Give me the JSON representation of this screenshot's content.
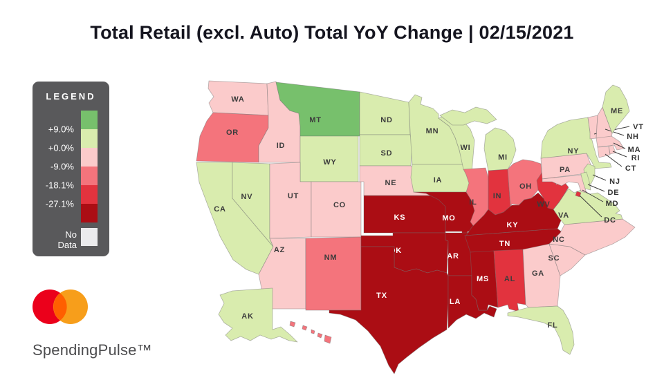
{
  "title": "Total Retail (excl. Auto) Total YoY Change | 02/15/2021",
  "legend": {
    "title": "LEGEND",
    "boundary_labels": [
      "+9.0%",
      "+0.0%",
      "-9.0%",
      "-18.1%",
      "-27.1%"
    ],
    "swatch_colors": [
      "#77c06c",
      "#d9ecae",
      "#fbcbcb",
      "#f4747c",
      "#e2333e",
      "#ab0d14"
    ],
    "no_data_label": "No Data",
    "no_data_color": "#ebebed",
    "background": "#59595b"
  },
  "chart_data": {
    "type": "choropleth",
    "title": "Total Retail (excl. Auto) Total YoY Change",
    "date": "02/15/2021",
    "unit": "YoY % change buckets",
    "legend_position": "left",
    "buckets": [
      {
        "range": "above +9.0%",
        "color": "#77c06c"
      },
      {
        "range": "+0.0% to +9.0%",
        "color": "#d9ecae"
      },
      {
        "range": "-9.0% to +0.0%",
        "color": "#fbcbcb"
      },
      {
        "range": "-18.1% to -9.0%",
        "color": "#f4747c"
      },
      {
        "range": "-27.1% to -18.1%",
        "color": "#e2333e"
      },
      {
        "range": "below -27.1%",
        "color": "#ab0d14"
      }
    ],
    "no_data": {
      "label": "No Data",
      "color": "#ebebed"
    },
    "states": [
      {
        "id": "WA",
        "bucket": 2
      },
      {
        "id": "OR",
        "bucket": 3
      },
      {
        "id": "CA",
        "bucket": 1
      },
      {
        "id": "NV",
        "bucket": 1
      },
      {
        "id": "ID",
        "bucket": 2
      },
      {
        "id": "MT",
        "bucket": 0
      },
      {
        "id": "WY",
        "bucket": 1
      },
      {
        "id": "UT",
        "bucket": 2
      },
      {
        "id": "CO",
        "bucket": 2
      },
      {
        "id": "AZ",
        "bucket": 2
      },
      {
        "id": "NM",
        "bucket": 3
      },
      {
        "id": "ND",
        "bucket": 1
      },
      {
        "id": "SD",
        "bucket": 1
      },
      {
        "id": "NE",
        "bucket": 2
      },
      {
        "id": "KS",
        "bucket": 5
      },
      {
        "id": "OK",
        "bucket": 5
      },
      {
        "id": "TX",
        "bucket": 5
      },
      {
        "id": "MN",
        "bucket": 1
      },
      {
        "id": "IA",
        "bucket": 1
      },
      {
        "id": "MO",
        "bucket": 5
      },
      {
        "id": "AR",
        "bucket": 5
      },
      {
        "id": "LA",
        "bucket": 5
      },
      {
        "id": "WI",
        "bucket": 1
      },
      {
        "id": "IL",
        "bucket": 3
      },
      {
        "id": "MI",
        "bucket": 1
      },
      {
        "id": "IN",
        "bucket": 4
      },
      {
        "id": "OH",
        "bucket": 3
      },
      {
        "id": "KY",
        "bucket": 5
      },
      {
        "id": "TN",
        "bucket": 5
      },
      {
        "id": "MS",
        "bucket": 5
      },
      {
        "id": "AL",
        "bucket": 4
      },
      {
        "id": "GA",
        "bucket": 2
      },
      {
        "id": "FL",
        "bucket": 1
      },
      {
        "id": "SC",
        "bucket": 2
      },
      {
        "id": "NC",
        "bucket": 2
      },
      {
        "id": "VA",
        "bucket": 1
      },
      {
        "id": "WV",
        "bucket": 4
      },
      {
        "id": "PA",
        "bucket": 2
      },
      {
        "id": "NY",
        "bucket": 1
      },
      {
        "id": "NJ",
        "bucket": 1
      },
      {
        "id": "DE",
        "bucket": 1
      },
      {
        "id": "MD",
        "bucket": 2
      },
      {
        "id": "DC",
        "bucket": 4
      },
      {
        "id": "VT",
        "bucket": 2
      },
      {
        "id": "NH",
        "bucket": 2
      },
      {
        "id": "MA",
        "bucket": 2
      },
      {
        "id": "RI",
        "bucket": 2
      },
      {
        "id": "CT",
        "bucket": 2
      },
      {
        "id": "ME",
        "bucket": 1
      },
      {
        "id": "AK",
        "bucket": 1
      },
      {
        "id": "HI",
        "bucket": 3
      }
    ]
  },
  "logo": {
    "left_circle": "#EB001B",
    "right_circle": "#F79E1B",
    "overlap": "#FF5F00"
  },
  "footer": {
    "brand": "SpendingPulse™"
  }
}
